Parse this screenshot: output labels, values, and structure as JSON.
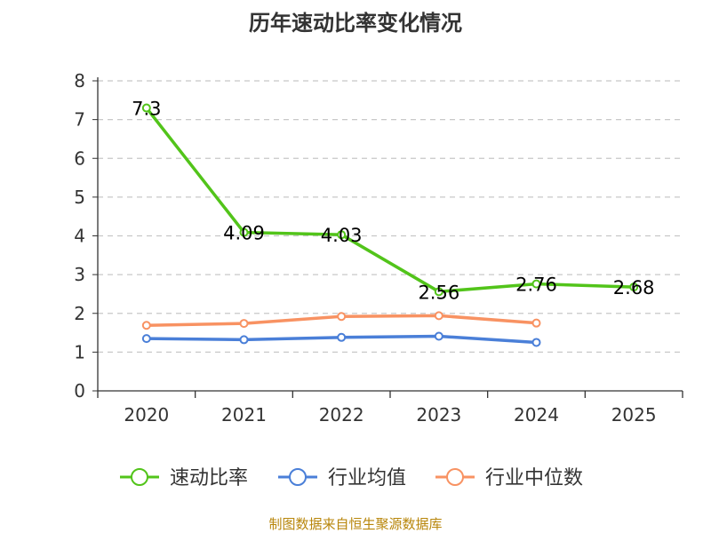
{
  "chart_data": {
    "type": "line",
    "title": "历年速动比率变化情况",
    "categories": [
      "2020",
      "2021",
      "2022",
      "2023",
      "2024",
      "2025"
    ],
    "ylim": [
      0,
      8
    ],
    "yticks": [
      "0",
      "1",
      "2",
      "3",
      "4",
      "5",
      "6",
      "7",
      "8"
    ],
    "grid": true,
    "legend_position": "bottom",
    "series": [
      {
        "name": "速动比率",
        "color": "#52c41a",
        "values": [
          7.3,
          4.09,
          4.03,
          2.56,
          2.76,
          2.68
        ],
        "labels": [
          "7.3",
          "4.09",
          "4.03",
          "2.56",
          "2.76",
          "2.68"
        ]
      },
      {
        "name": "行业均值",
        "color": "#4a7fd8",
        "values": [
          1.35,
          1.32,
          1.38,
          1.41,
          1.25,
          null
        ]
      },
      {
        "name": "行业中位数",
        "color": "#f89262",
        "values": [
          1.69,
          1.74,
          1.92,
          1.94,
          1.75,
          null
        ]
      }
    ]
  },
  "source": "制图数据来自恒生聚源数据库"
}
